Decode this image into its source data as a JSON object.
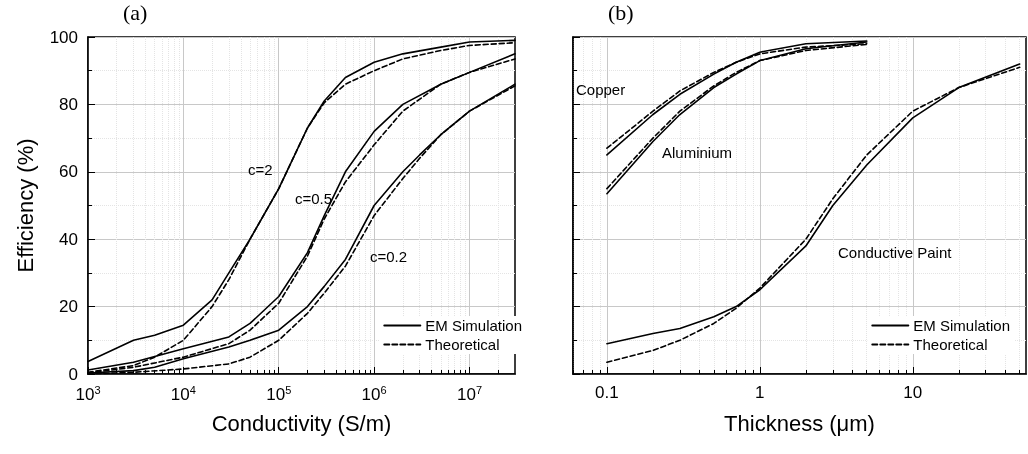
{
  "chart_data": [
    {
      "type": "line",
      "title": "(a)",
      "xlabel": "Conductivity (S/m)",
      "ylabel": "Efficiency (%)",
      "log": "x",
      "grid": true,
      "legend": "bottom right",
      "xlim": [
        1000,
        30000000
      ],
      "xticks": [
        {
          "value": 1000,
          "label": "10$^{3}$"
        },
        {
          "value": 10000,
          "label": "10$^{4}$"
        },
        {
          "value": 100000,
          "label": "10$^{5}$"
        },
        {
          "value": 1000000,
          "label": "10$^{6}$"
        },
        {
          "value": 10000000,
          "label": "10$^{7}$"
        }
      ],
      "ylim": [
        0,
        100
      ],
      "yticks": [
        0,
        20,
        40,
        60,
        80,
        100
      ],
      "series": [
        {
          "name": "EM Simulation",
          "color": "#000000",
          "line_style": "solid",
          "x": [
            1000,
            3000,
            5000,
            10000,
            20000,
            30000,
            50000,
            100000,
            200000,
            300000,
            500000,
            1000000,
            2000000,
            5000000,
            10000000,
            30000000
          ],
          "values": [
            3.7,
            10,
            11.5,
            14.5,
            22,
            30,
            40,
            55,
            73,
            81,
            88,
            92.5,
            95,
            97,
            98.5,
            99
          ]
        },
        {
          "name": "Theoretical",
          "color": "#000000",
          "line_style": "dashed",
          "x": [
            1000,
            3000,
            5000,
            10000,
            20000,
            30000,
            50000,
            100000,
            200000,
            300000,
            500000,
            1000000,
            2000000,
            5000000,
            10000000,
            30000000
          ],
          "values": [
            0.5,
            2.5,
            5,
            10,
            20,
            28,
            40,
            55,
            73,
            80.5,
            86,
            90,
            93.5,
            96,
            97.5,
            98.3
          ]
        },
        {
          "color": "#000000",
          "line_style": "solid",
          "x": [
            1000,
            3000,
            10000,
            30000,
            50000,
            100000,
            200000,
            300000,
            500000,
            1000000,
            2000000,
            5000000,
            10000000,
            30000000
          ],
          "values": [
            1.2,
            3.5,
            7.5,
            11,
            15,
            23,
            36,
            47,
            60,
            72,
            80,
            86,
            89.5,
            95
          ]
        },
        {
          "color": "#000000",
          "line_style": "dashed",
          "x": [
            1000,
            3000,
            10000,
            30000,
            50000,
            100000,
            200000,
            300000,
            500000,
            1000000,
            2000000,
            5000000,
            10000000,
            30000000
          ],
          "values": [
            0.3,
            2,
            5,
            9,
            13,
            21,
            35,
            46,
            57,
            68,
            78,
            86,
            89.5,
            93.5
          ]
        },
        {
          "color": "#000000",
          "line_style": "solid",
          "x": [
            1000,
            3000,
            5000,
            10000,
            30000,
            50000,
            100000,
            200000,
            300000,
            500000,
            1000000,
            2000000,
            3000000,
            5000000,
            10000000,
            30000000
          ],
          "values": [
            0.3,
            1,
            2,
            4.5,
            8,
            10,
            13,
            20,
            26,
            34,
            50,
            60,
            65,
            71,
            78,
            86
          ]
        },
        {
          "color": "#000000",
          "line_style": "dashed",
          "x": [
            1000,
            3000,
            10000,
            30000,
            50000,
            100000,
            200000,
            300000,
            500000,
            1000000,
            2000000,
            3000000,
            5000000,
            10000000,
            30000000
          ],
          "values": [
            0,
            0.5,
            1.5,
            3,
            5,
            10,
            18,
            24,
            32,
            47,
            58,
            64,
            71,
            78,
            85.5
          ]
        }
      ],
      "annotations": [
        "c=2",
        "c=0.5",
        "c=0.2"
      ]
    },
    {
      "type": "line",
      "title": "(b)",
      "xlabel": "Thickness (μm)",
      "log": "x",
      "grid": true,
      "legend": "bottom right",
      "tick_labels": "x",
      "xlim": [
        0.06,
        55
      ],
      "xticks": [
        0.1,
        1,
        10
      ],
      "ylim": [
        0,
        100
      ],
      "yticks": [
        0,
        20,
        40,
        60,
        80,
        100
      ],
      "series": [
        {
          "name": "EM Simulation",
          "color": "#000000",
          "line_style": "solid",
          "x": [
            0.1,
            0.2,
            0.3,
            0.5,
            0.7,
            1,
            2,
            5
          ],
          "values": [
            65,
            77,
            83,
            89,
            92.5,
            95.5,
            98,
            98.8
          ]
        },
        {
          "name": "Theoretical",
          "color": "#000000",
          "line_style": "dashed",
          "x": [
            0.1,
            0.2,
            0.3,
            0.5,
            0.7,
            1,
            2,
            5
          ],
          "values": [
            67,
            78,
            84,
            89.5,
            92.5,
            95,
            97,
            98
          ]
        },
        {
          "color": "#000000",
          "line_style": "solid",
          "x": [
            0.1,
            0.2,
            0.3,
            0.5,
            0.7,
            1,
            2,
            5
          ],
          "values": [
            53.5,
            69,
            77,
            85,
            89,
            93,
            96.5,
            98.5
          ]
        },
        {
          "color": "#000000",
          "line_style": "dashed",
          "x": [
            0.1,
            0.2,
            0.3,
            0.5,
            0.7,
            1,
            2,
            5
          ],
          "values": [
            55,
            70,
            78,
            85.5,
            89.5,
            93,
            96,
            97.8
          ]
        },
        {
          "color": "#000000",
          "line_style": "solid",
          "x": [
            0.1,
            0.2,
            0.3,
            0.5,
            0.7,
            1,
            2,
            3,
            5,
            10,
            20,
            50
          ],
          "values": [
            9,
            12,
            13.5,
            17,
            20,
            25,
            38,
            50,
            62,
            76,
            85,
            92
          ]
        },
        {
          "color": "#000000",
          "line_style": "dashed",
          "x": [
            0.1,
            0.2,
            0.3,
            0.5,
            0.7,
            1,
            2,
            3,
            5,
            10,
            20,
            50
          ],
          "values": [
            3.5,
            7,
            10,
            15,
            19.5,
            25.5,
            40,
            52,
            65,
            78,
            85,
            91
          ]
        }
      ],
      "annotations": [
        "Copper",
        "Aluminium",
        "Conductive Paint"
      ]
    }
  ]
}
